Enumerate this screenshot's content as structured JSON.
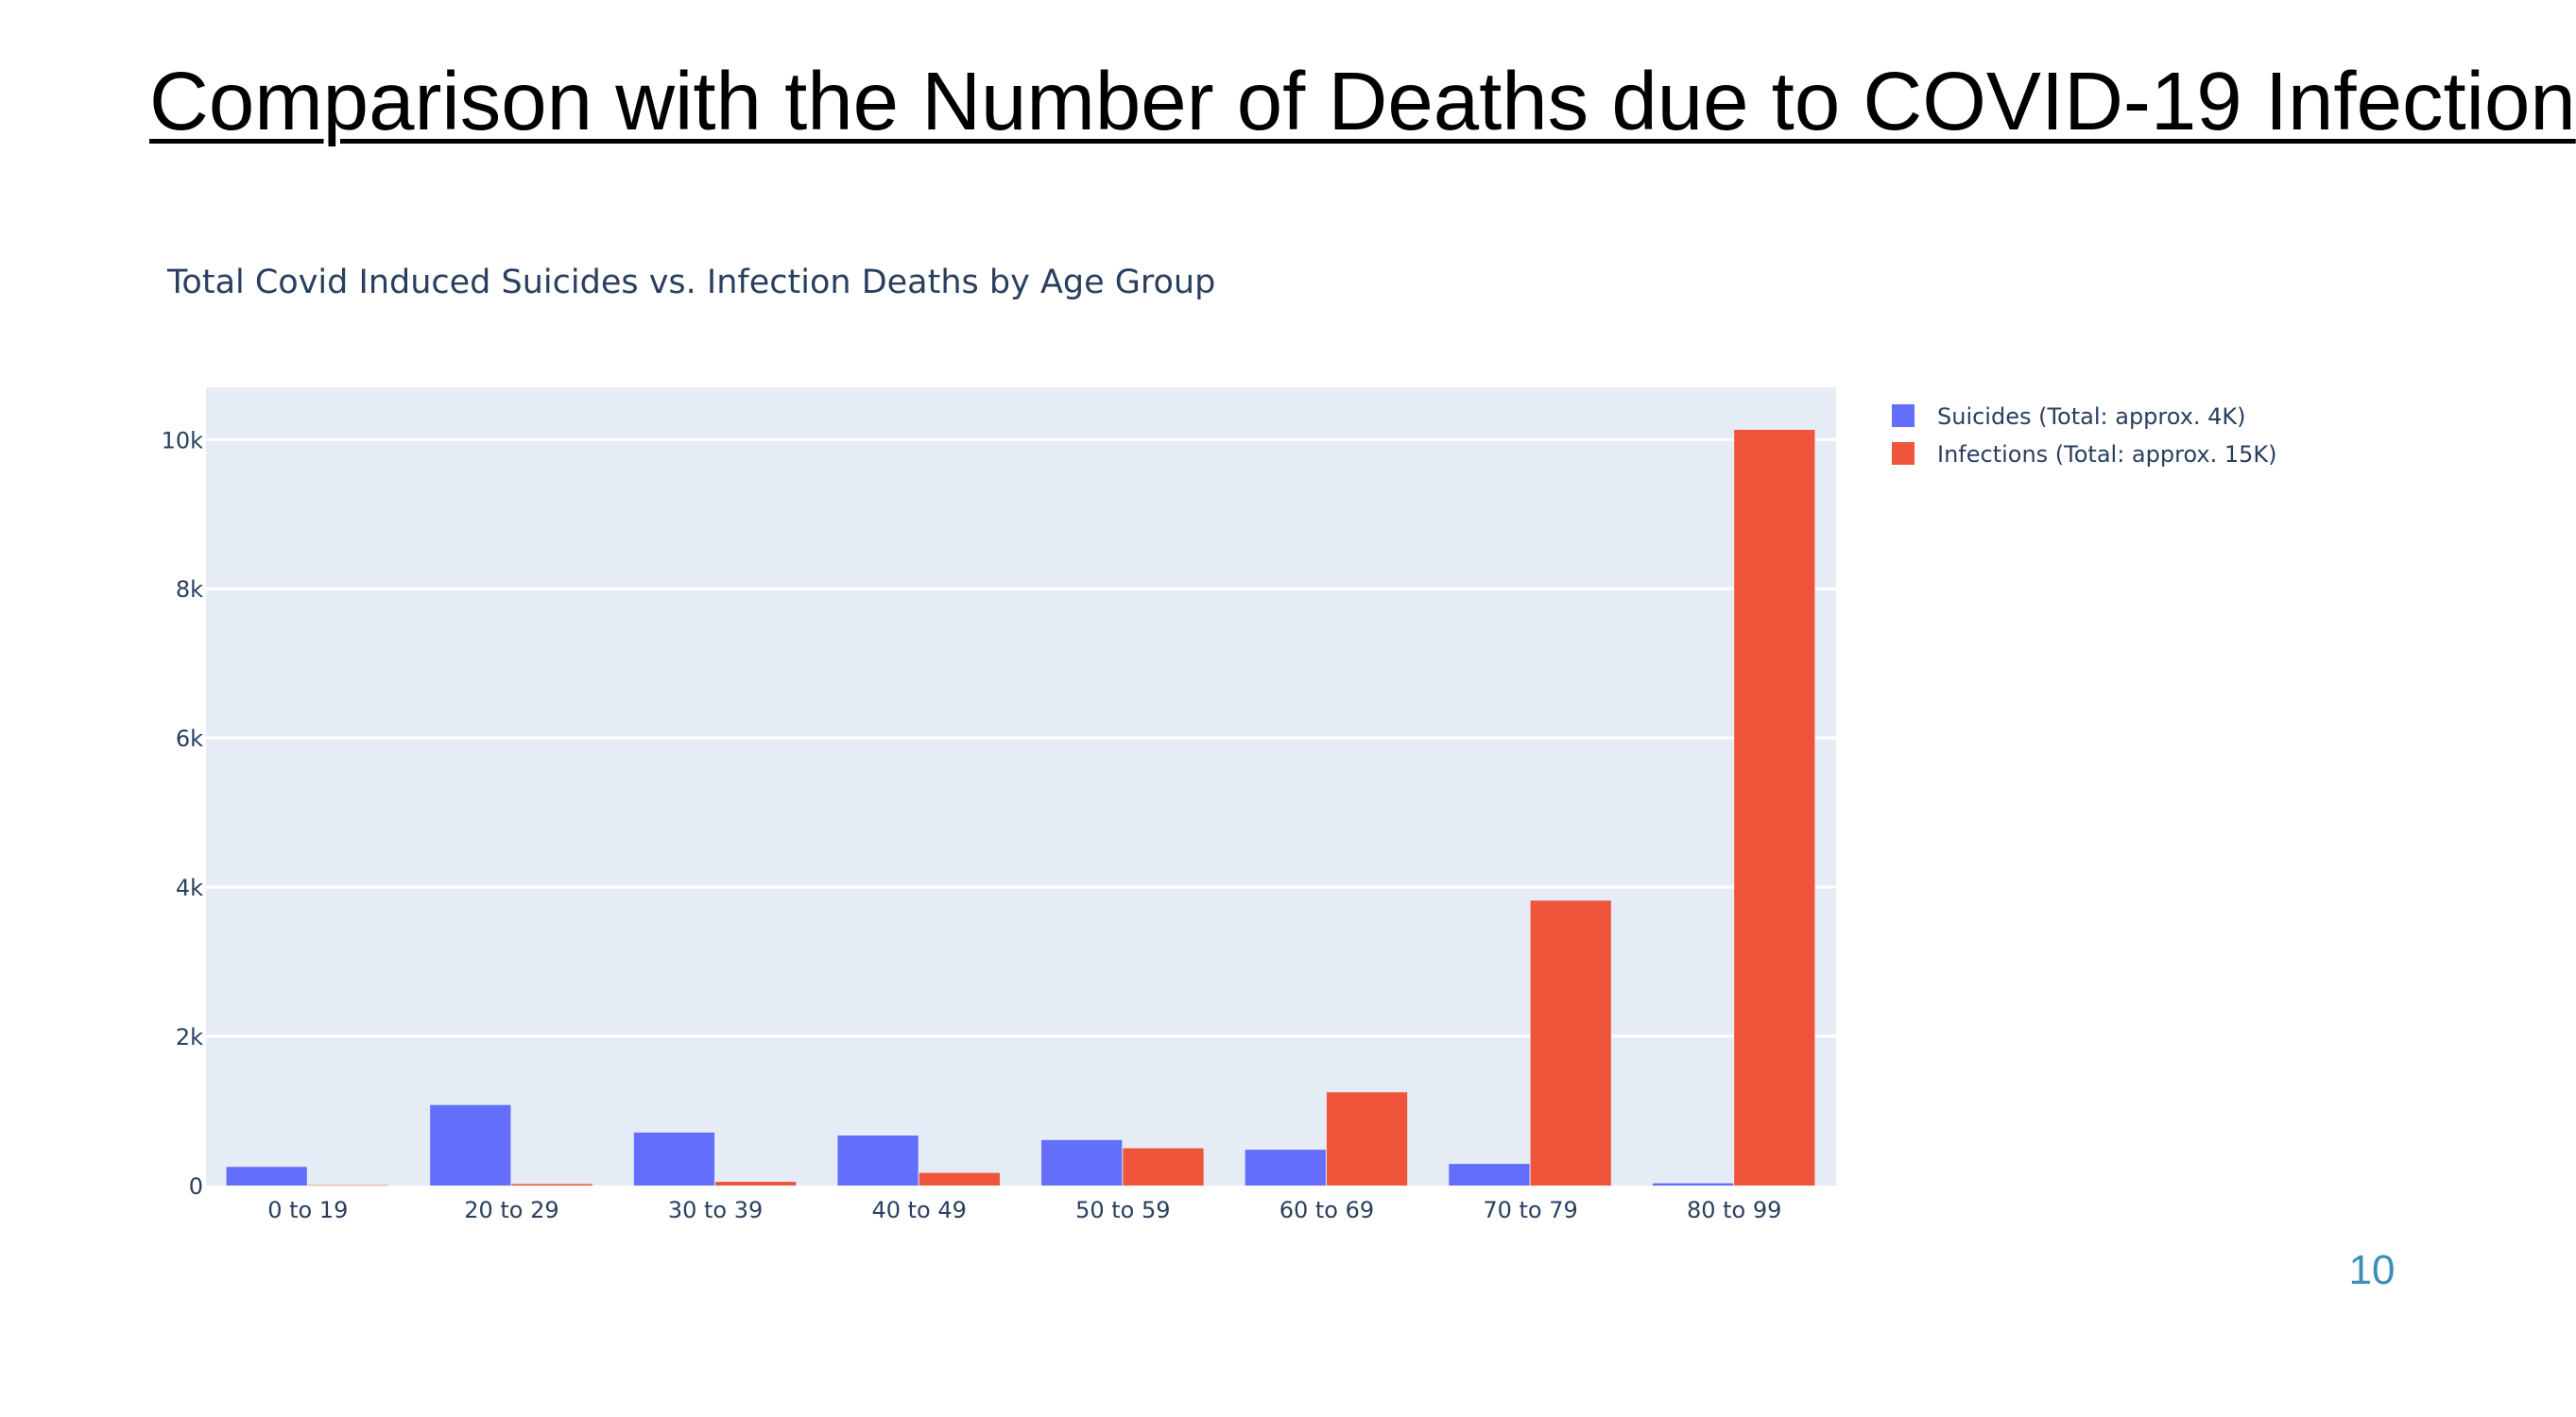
{
  "slide": {
    "title": "Comparison with the Number of Deaths due to COVID-19 Infection",
    "page_number": "10"
  },
  "chart_data": {
    "type": "bar",
    "title": "Total Covid Induced Suicides vs. Infection Deaths by Age Group",
    "xlabel": "",
    "ylabel": "",
    "categories": [
      "0 to 19",
      "20 to 29",
      "30 to 39",
      "40 to 49",
      "50 to 59",
      "60 to 69",
      "70 to 79",
      "80 to 99"
    ],
    "series": [
      {
        "name": "Suicides (Total: approx. 4K)",
        "color": "#636efa",
        "values": [
          250,
          1080,
          710,
          670,
          610,
          480,
          290,
          30
        ]
      },
      {
        "name": "Infections (Total: approx. 15K)",
        "color": "#ef553b",
        "values": [
          5,
          20,
          50,
          170,
          500,
          1250,
          3820,
          10130
        ]
      }
    ],
    "ylim": [
      0,
      10700
    ],
    "yticks": [
      0,
      2000,
      4000,
      6000,
      8000,
      10000
    ],
    "ytick_labels": [
      "0",
      "2k",
      "4k",
      "6k",
      "8k",
      "10k"
    ],
    "grid": true,
    "legend_position": "top-right",
    "plot_background": "#e5ecf6"
  }
}
